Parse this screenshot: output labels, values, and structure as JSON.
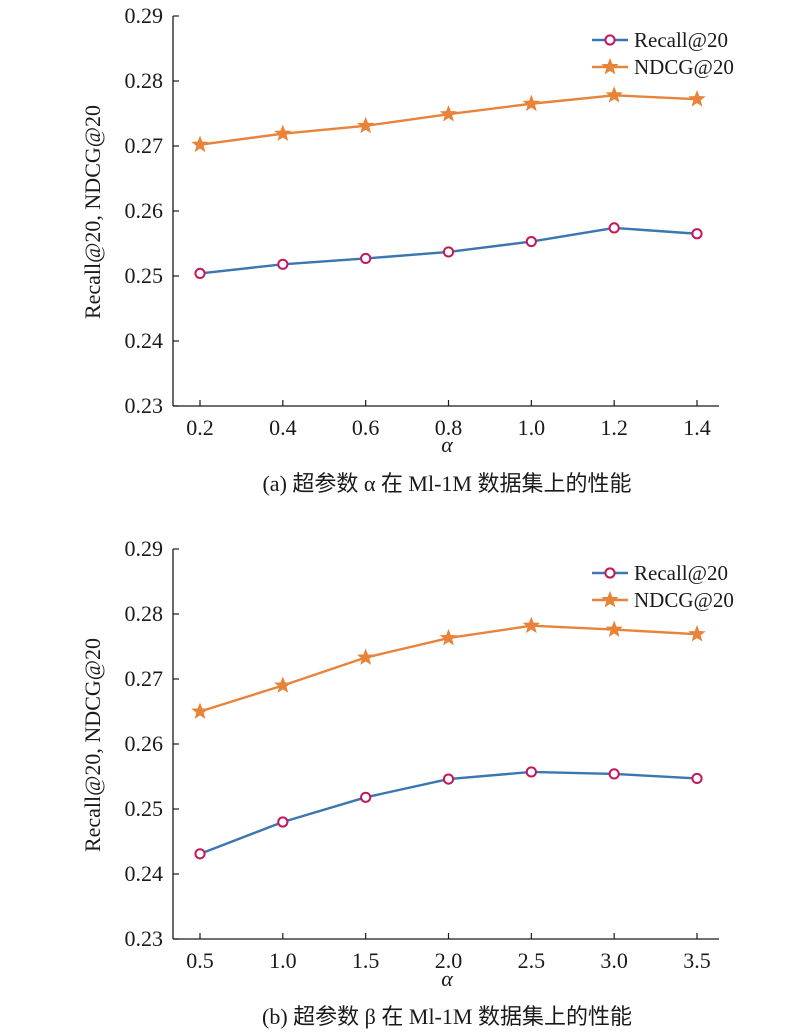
{
  "colors": {
    "recall_line": "#3a76b0",
    "recall_marker_edge": "#c2185b",
    "ndcg_line": "#e8833a",
    "axis": "#1a1a1a"
  },
  "chart_data": [
    {
      "type": "line",
      "caption": "(a) 超参数 α 在 Ml-1M 数据集上的性能",
      "xlabel": "α",
      "ylabel": "Recall@20, NDCG@20",
      "x": [
        0.2,
        0.4,
        0.6,
        0.8,
        1.0,
        1.2,
        1.4
      ],
      "x_tick_labels": [
        "0.2",
        "0.4",
        "0.6",
        "0.8",
        "1.0",
        "1.2",
        "1.4"
      ],
      "ylim": [
        0.23,
        0.29
      ],
      "y_tick_labels": [
        "0.23",
        "0.24",
        "0.25",
        "0.26",
        "0.27",
        "0.28",
        "0.29"
      ],
      "legend_position": "top-right",
      "grid": false,
      "series": [
        {
          "name": "Recall@20",
          "marker": "circle",
          "values": [
            0.2504,
            0.2518,
            0.2527,
            0.2537,
            0.2553,
            0.2574,
            0.2565
          ]
        },
        {
          "name": "NDCG@20",
          "marker": "star",
          "values": [
            0.2702,
            0.2719,
            0.2731,
            0.2749,
            0.2765,
            0.2778,
            0.2772
          ]
        }
      ]
    },
    {
      "type": "line",
      "caption": "(b) 超参数 β 在 Ml-1M 数据集上的性能",
      "xlabel": "α",
      "ylabel": "Recall@20, NDCG@20",
      "x": [
        0.5,
        1.0,
        1.5,
        2.0,
        2.5,
        3.0,
        3.5
      ],
      "x_tick_labels": [
        "0.5",
        "1.0",
        "1.5",
        "2.0",
        "2.5",
        "3.0",
        "3.5"
      ],
      "ylim": [
        0.23,
        0.29
      ],
      "y_tick_labels": [
        "0.23",
        "0.24",
        "0.25",
        "0.26",
        "0.27",
        "0.28",
        "0.29"
      ],
      "legend_position": "top-right",
      "grid": false,
      "series": [
        {
          "name": "Recall@20",
          "marker": "circle",
          "values": [
            0.2431,
            0.248,
            0.2518,
            0.2546,
            0.2557,
            0.2554,
            0.2547
          ]
        },
        {
          "name": "NDCG@20",
          "marker": "star",
          "values": [
            0.265,
            0.269,
            0.2733,
            0.2763,
            0.2782,
            0.2776,
            0.2769
          ]
        }
      ]
    }
  ]
}
